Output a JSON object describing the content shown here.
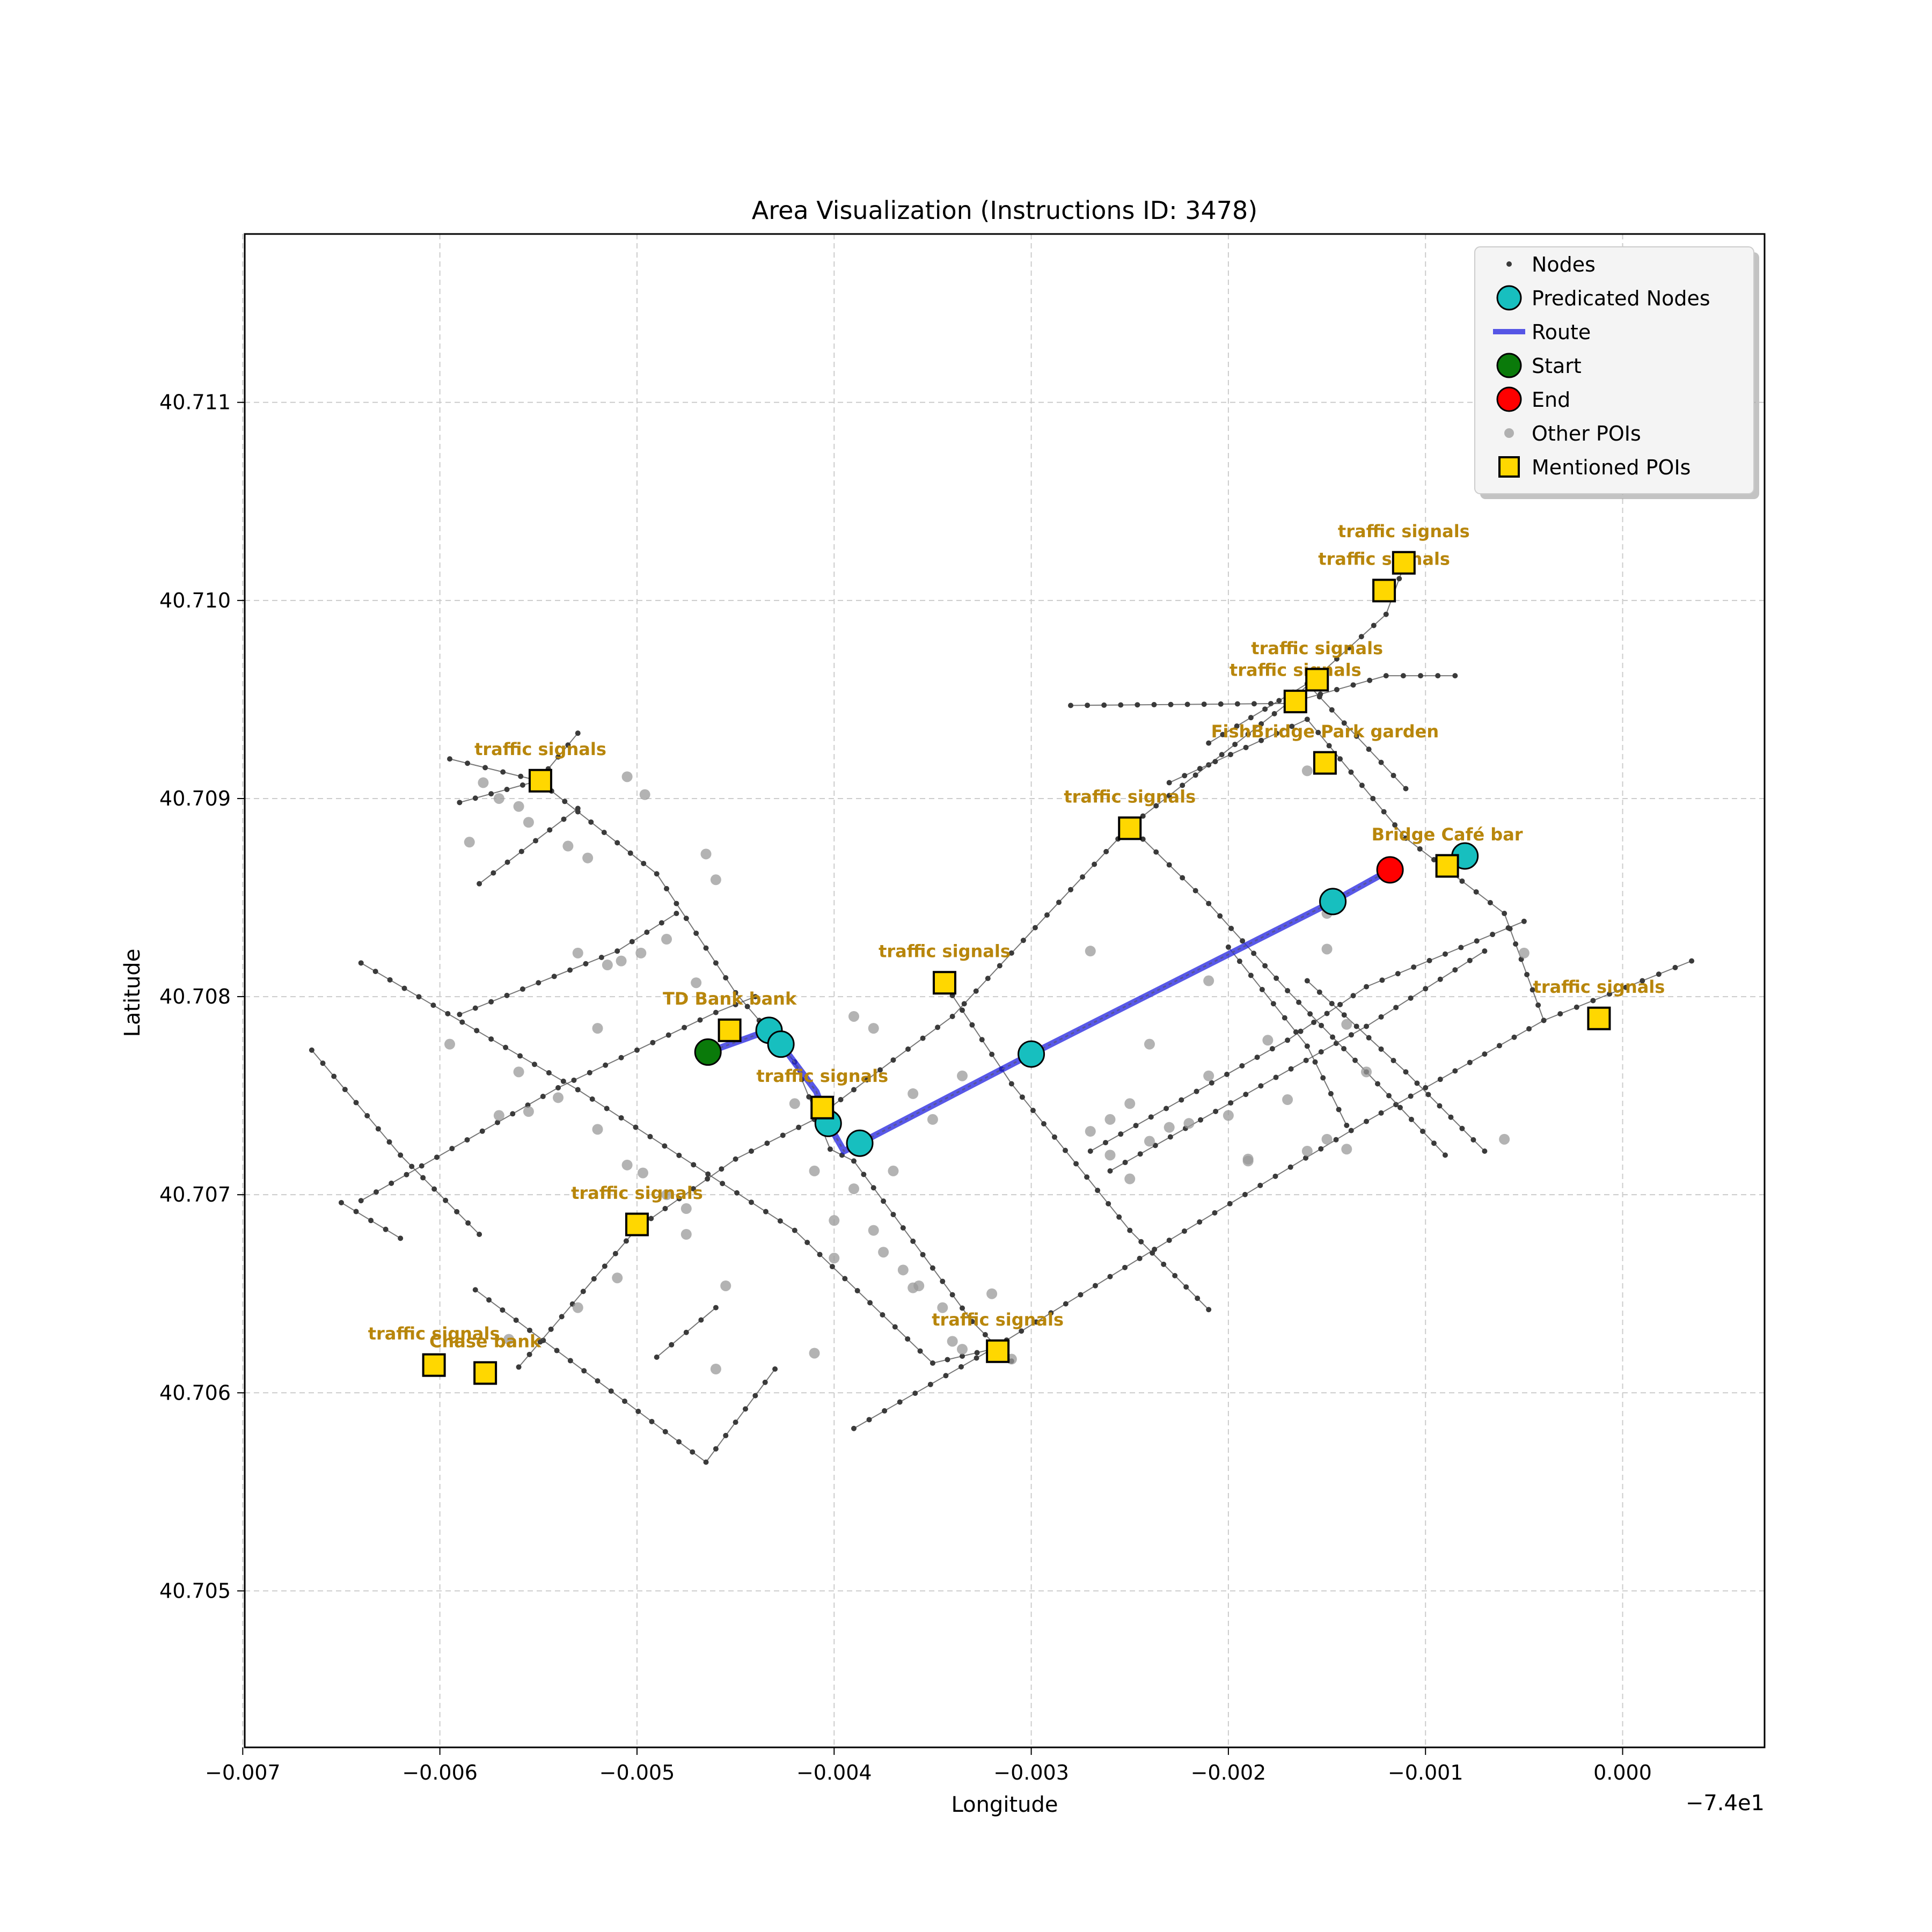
{
  "chart_data": {
    "type": "scatter",
    "title": "Area Visualization (Instructions ID: 3478)",
    "xlabel": "Longitude",
    "ylabel": "Latitude",
    "x_offset_label": "−7.4e1",
    "xlim": [
      -0.00699,
      0.00072
    ],
    "ylim": [
      40.70421,
      40.71185
    ],
    "x_ticks": [
      {
        "value": -0.007,
        "label": "−0.007"
      },
      {
        "value": -0.006,
        "label": "−0.006"
      },
      {
        "value": -0.005,
        "label": "−0.005"
      },
      {
        "value": -0.004,
        "label": "−0.004"
      },
      {
        "value": -0.003,
        "label": "−0.003"
      },
      {
        "value": -0.002,
        "label": "−0.002"
      },
      {
        "value": -0.001,
        "label": "−0.001"
      },
      {
        "value": 0.0,
        "label": "0.000"
      }
    ],
    "y_ticks": [
      {
        "value": 40.705,
        "label": "40.705"
      },
      {
        "value": 40.706,
        "label": "40.706"
      },
      {
        "value": 40.707,
        "label": "40.707"
      },
      {
        "value": 40.708,
        "label": "40.708"
      },
      {
        "value": 40.709,
        "label": "40.709"
      },
      {
        "value": 40.71,
        "label": "40.710"
      },
      {
        "value": 40.711,
        "label": "40.711"
      }
    ],
    "grid": true,
    "legend": {
      "position": "top-right",
      "entries": [
        {
          "label": "Nodes",
          "kind": "node"
        },
        {
          "label": "Predicated Nodes",
          "kind": "predicted"
        },
        {
          "label": "Route",
          "kind": "route"
        },
        {
          "label": "Start",
          "kind": "start"
        },
        {
          "label": "End",
          "kind": "end"
        },
        {
          "label": "Other POIs",
          "kind": "poi"
        },
        {
          "label": "Mentioned POIs",
          "kind": "mentioned"
        }
      ]
    },
    "colors": {
      "node": "#3a3a3a",
      "edge": "#555555",
      "predicted": "#17bfbf",
      "route": "#2020e0",
      "start": "#0a7a0a",
      "end": "#ff0000",
      "poi": "#999999",
      "mentioned": "#ffd700",
      "poi_label": "#b8860b",
      "grid": "#cccccc"
    },
    "streets": [
      [
        [
          -0.0064,
          40.70817
        ],
        [
          -0.0053,
          40.70753
        ],
        [
          -0.0042,
          40.70682
        ],
        [
          -0.0035,
          40.70615
        ],
        [
          -0.0032,
          40.70622
        ]
      ],
      [
        [
          -0.00665,
          40.70773
        ],
        [
          -0.0062,
          40.7072
        ],
        [
          -0.0058,
          40.7068
        ]
      ],
      [
        [
          -0.0059,
          40.70791
        ],
        [
          -0.0051,
          40.70823
        ],
        [
          -0.0048,
          40.70842
        ]
      ],
      [
        [
          -0.0065,
          40.70696
        ],
        [
          -0.0062,
          40.70678
        ]
      ],
      [
        [
          -0.0064,
          40.70697
        ],
        [
          -0.0054,
          40.70754
        ],
        [
          -0.0046,
          40.70792
        ],
        [
          -0.0044,
          40.708
        ]
      ],
      [
        [
          -0.00582,
          40.70652
        ],
        [
          -0.0052,
          40.70606
        ],
        [
          -0.00465,
          40.70565
        ],
        [
          -0.0043,
          40.70612
        ]
      ],
      [
        [
          -0.0056,
          40.70613
        ],
        [
          -0.005,
          40.70683
        ],
        [
          -0.0045,
          40.70718
        ],
        [
          -0.0041,
          40.70738
        ],
        [
          -0.0037,
          40.70768
        ],
        [
          -0.0034,
          40.7079
        ],
        [
          -0.0025,
          40.70886
        ],
        [
          -0.0017,
          40.70948
        ],
        [
          -0.0012,
          40.70993
        ],
        [
          -0.0011,
          40.7102
        ]
      ],
      [
        [
          -0.00595,
          40.7092
        ],
        [
          -0.0055,
          40.70909
        ],
        [
          -0.0053,
          40.70933
        ]
      ],
      [
        [
          -0.0059,
          40.70898
        ],
        [
          -0.0055,
          40.70909
        ],
        [
          -0.0049,
          40.70862
        ],
        [
          -0.0045,
          40.70802
        ],
        [
          -0.0042,
          40.70767
        ],
        [
          -0.00402,
          40.70723
        ],
        [
          -0.0039,
          40.70717
        ],
        [
          -0.0033,
          40.70636
        ],
        [
          -0.0031,
          40.70616
        ]
      ],
      [
        [
          -0.0058,
          40.70857
        ],
        [
          -0.0053,
          40.70895
        ]
      ],
      [
        [
          -0.0049,
          40.70618
        ],
        [
          -0.0046,
          40.70643
        ]
      ],
      [
        [
          -0.0039,
          40.70582
        ],
        [
          -0.0032,
          40.70622
        ],
        [
          -0.0023,
          40.70677
        ],
        [
          -0.0013,
          40.70737
        ],
        [
          -0.0004,
          40.70788
        ],
        [
          0.00035,
          40.70818
        ]
      ],
      [
        [
          -0.0027,
          40.70722
        ],
        [
          -0.0017,
          40.70778
        ],
        [
          -0.0013,
          40.70805
        ],
        [
          -0.0005,
          40.70838
        ]
      ],
      [
        [
          -0.0026,
          40.70712
        ],
        [
          -0.0013,
          40.70785
        ],
        [
          -0.0007,
          40.70823
        ]
      ],
      [
        [
          -0.0028,
          40.70947
        ],
        [
          -0.0017,
          40.70948
        ],
        [
          -0.0012,
          40.70962
        ],
        [
          -0.00085,
          40.70962
        ]
      ],
      [
        [
          -0.0021,
          40.70928
        ],
        [
          -0.0016,
          40.70958
        ],
        [
          -0.0011,
          40.70905
        ]
      ],
      [
        [
          -0.0023,
          40.70908
        ],
        [
          -0.0016,
          40.7094
        ],
        [
          -0.0011,
          40.7088
        ],
        [
          -0.0006,
          40.70842
        ],
        [
          -0.0004,
          40.70788
        ]
      ],
      [
        [
          -0.00345,
          40.70808
        ],
        [
          -0.0031,
          40.70756
        ],
        [
          -0.0025,
          40.70682
        ],
        [
          -0.0021,
          40.70642
        ]
      ],
      [
        [
          -0.0025,
          40.70886
        ],
        [
          -0.0021,
          40.70847
        ],
        [
          -0.0017,
          40.70803
        ],
        [
          -0.0013,
          40.70762
        ],
        [
          -0.0009,
          40.7072
        ]
      ],
      [
        [
          -0.002,
          40.70825
        ],
        [
          -0.0016,
          40.70775
        ],
        [
          -0.0014,
          40.70735
        ]
      ],
      [
        [
          -0.0016,
          40.70808
        ],
        [
          -0.0011,
          40.70762
        ],
        [
          -0.0007,
          40.70722
        ]
      ]
    ],
    "other_pois": [
      [
        -0.00585,
        40.70878
      ],
      [
        -0.00555,
        40.70888
      ],
      [
        -0.00535,
        40.70876
      ],
      [
        -0.00525,
        40.7087
      ],
      [
        -0.00578,
        40.70908
      ],
      [
        -0.0057,
        40.709
      ],
      [
        -0.0056,
        40.70896
      ],
      [
        -0.00505,
        40.70911
      ],
      [
        -0.00496,
        40.70902
      ],
      [
        -0.0053,
        40.70822
      ],
      [
        -0.00515,
        40.70816
      ],
      [
        -0.00508,
        40.70818
      ],
      [
        -0.00498,
        40.70822
      ],
      [
        -0.00485,
        40.70829
      ],
      [
        -0.0047,
        40.70807
      ],
      [
        -0.00465,
        40.70872
      ],
      [
        -0.0046,
        40.70859
      ],
      [
        -0.00595,
        40.70776
      ],
      [
        -0.0057,
        40.7074
      ],
      [
        -0.0056,
        40.70762
      ],
      [
        -0.00555,
        40.70742
      ],
      [
        -0.0054,
        40.70749
      ],
      [
        -0.0052,
        40.70784
      ],
      [
        -0.0052,
        40.70733
      ],
      [
        -0.00505,
        40.70715
      ],
      [
        -0.00497,
        40.70711
      ],
      [
        -0.00475,
        40.7068
      ],
      [
        -0.00485,
        40.707
      ],
      [
        -0.0053,
        40.70643
      ],
      [
        -0.0051,
        40.70658
      ],
      [
        -0.00455,
        40.70654
      ],
      [
        -0.0046,
        40.70612
      ],
      [
        -0.00565,
        40.70627
      ],
      [
        -0.00475,
        40.70693
      ],
      [
        -0.0042,
        40.70746
      ],
      [
        -0.0041,
        40.70712
      ],
      [
        -0.0039,
        40.70703
      ],
      [
        -0.004,
        40.70687
      ],
      [
        -0.0038,
        40.70682
      ],
      [
        -0.00375,
        40.70671
      ],
      [
        -0.00365,
        40.70662
      ],
      [
        -0.00357,
        40.70654
      ],
      [
        -0.00345,
        40.70643
      ],
      [
        -0.0034,
        40.70626
      ],
      [
        -0.0032,
        40.7065
      ],
      [
        -0.00335,
        40.70622
      ],
      [
        -0.0036,
        40.70653
      ],
      [
        -0.004,
        40.70668
      ],
      [
        -0.0041,
        40.7062
      ],
      [
        -0.0038,
        40.70784
      ],
      [
        -0.0039,
        40.7079
      ],
      [
        -0.0035,
        40.70738
      ],
      [
        -0.00335,
        40.7076
      ],
      [
        -0.0036,
        40.70751
      ],
      [
        -0.0037,
        40.70712
      ],
      [
        -0.0027,
        40.70823
      ],
      [
        -0.0027,
        40.70732
      ],
      [
        -0.0026,
        40.70738
      ],
      [
        -0.0025,
        40.70746
      ],
      [
        -0.0024,
        40.70727
      ],
      [
        -0.0023,
        40.70734
      ],
      [
        -0.0022,
        40.70736
      ],
      [
        -0.0021,
        40.7076
      ],
      [
        -0.002,
        40.7074
      ],
      [
        -0.0019,
        40.70717
      ],
      [
        -0.0026,
        40.7072
      ],
      [
        -0.0025,
        40.70708
      ],
      [
        -0.0018,
        40.70778
      ],
      [
        -0.0017,
        40.70748
      ],
      [
        -0.0016,
        40.70722
      ],
      [
        -0.0015,
        40.70728
      ],
      [
        -0.0014,
        40.70786
      ],
      [
        -0.0014,
        40.70723
      ],
      [
        -0.0013,
        40.70762
      ],
      [
        -0.0015,
        40.70824
      ],
      [
        -0.0019,
        40.70718
      ],
      [
        -0.0021,
        40.70808
      ],
      [
        -0.0024,
        40.70776
      ],
      [
        -0.0006,
        40.70728
      ],
      [
        -0.0005,
        40.70822
      ],
      [
        -0.0015,
        40.70842
      ],
      [
        -0.0016,
        40.70914
      ],
      [
        -0.0031,
        40.70617
      ]
    ],
    "mentioned_pois": [
      {
        "x": -0.00549,
        "y": 40.70909,
        "label": "traffic signals",
        "dy": -0.00014
      },
      {
        "x": -0.00453,
        "y": 40.70783,
        "label": "TD Bank bank",
        "dy": -0.00014
      },
      {
        "x": -0.00406,
        "y": 40.70744,
        "label": "traffic signals",
        "dy": -0.00014
      },
      {
        "x": -0.00344,
        "y": 40.70807,
        "label": "traffic signals",
        "dy": -0.00014
      },
      {
        "x": -0.005,
        "y": 40.70685,
        "label": "traffic signals",
        "dy": -0.00014
      },
      {
        "x": -0.00603,
        "y": 40.70614,
        "label": "traffic signals",
        "dy": -0.00014
      },
      {
        "x": -0.00577,
        "y": 40.7061,
        "label": "Chase bank",
        "dy": -0.00014
      },
      {
        "x": -0.00317,
        "y": 40.70621,
        "label": "traffic signals",
        "dy": -0.00014
      },
      {
        "x": -0.0025,
        "y": 40.70885,
        "label": "traffic signals",
        "dy": -0.00014
      },
      {
        "x": -0.00166,
        "y": 40.70949,
        "label": "traffic signals",
        "dy": -0.00014
      },
      {
        "x": -0.00155,
        "y": 40.7096,
        "label": "traffic signals",
        "dy": -0.00014
      },
      {
        "x": -0.00121,
        "y": 40.71005,
        "label": "traffic signals",
        "dy": -0.00014
      },
      {
        "x": -0.00111,
        "y": 40.71019,
        "label": "traffic signals",
        "dy": -0.00014
      },
      {
        "x": -0.00151,
        "y": 40.70918,
        "label": "FishBridge Park   garden",
        "dy": -0.00014
      },
      {
        "x": -0.00089,
        "y": 40.70866,
        "label": "Bridge Café bar",
        "dy": -0.00014
      },
      {
        "x": -0.00012,
        "y": 40.70789,
        "label": "traffic signals",
        "dy": -0.00014
      }
    ],
    "route": [
      [
        -0.00464,
        40.70772
      ],
      [
        -0.00433,
        40.70783
      ],
      [
        -0.00427,
        40.70776
      ],
      [
        -0.00409,
        40.70752
      ],
      [
        -0.00403,
        40.70736
      ],
      [
        -0.00395,
        40.70722
      ],
      [
        -0.00387,
        40.70726
      ],
      [
        -0.003,
        40.70771
      ],
      [
        -0.00147,
        40.70848
      ],
      [
        -0.00118,
        40.70864
      ]
    ],
    "predicted_nodes": [
      [
        -0.00433,
        40.70783
      ],
      [
        -0.00427,
        40.70776
      ],
      [
        -0.00403,
        40.70736
      ],
      [
        -0.00387,
        40.70726
      ],
      [
        -0.003,
        40.70771
      ],
      [
        -0.00147,
        40.70848
      ],
      [
        -0.0008,
        40.70871
      ]
    ],
    "start": [
      -0.00464,
      40.70772
    ],
    "end": [
      -0.00118,
      40.70864
    ]
  }
}
